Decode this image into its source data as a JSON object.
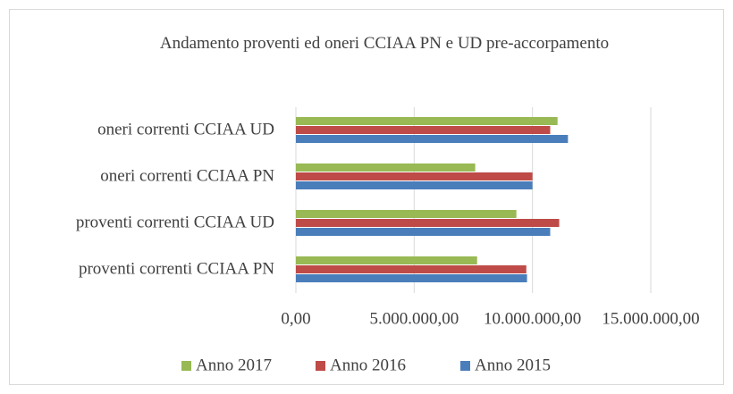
{
  "chart_data": {
    "type": "barh",
    "title": "Andamento proventi ed oneri CCIAA PN e UD pre-accorpamento",
    "categories": [
      "proventi correnti CCIAA PN",
      "proventi correnti CCIAA UD",
      "oneri correnti CCIAA PN",
      "oneri correnti CCIAA UD"
    ],
    "series": [
      {
        "name": "Anno 2015",
        "color": "#4a7ebb",
        "values": [
          9770000,
          10750000,
          10000000,
          11500000
        ]
      },
      {
        "name": "Anno 2016",
        "color": "#be4b48",
        "values": [
          9740000,
          11130000,
          10000000,
          10750000
        ]
      },
      {
        "name": "Anno 2017",
        "color": "#98b954",
        "values": [
          7660000,
          9320000,
          7580000,
          11060000
        ]
      }
    ],
    "xlim": [
      0,
      15000000
    ],
    "xticks": [
      {
        "value": 0,
        "label": "0,00"
      },
      {
        "value": 5000000,
        "label": "5.000.000,00"
      },
      {
        "value": 10000000,
        "label": "10.000.000,00"
      },
      {
        "value": 15000000,
        "label": "15.000.000,00"
      }
    ],
    "grid": true,
    "legend": "bottom"
  }
}
